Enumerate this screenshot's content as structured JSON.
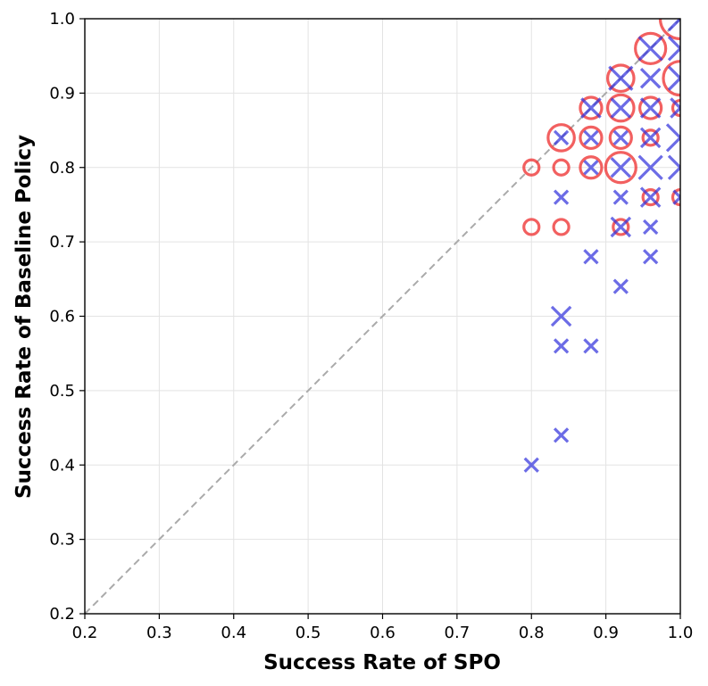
{
  "chart_data": {
    "type": "scatter",
    "title": "",
    "xlabel": "Success Rate of SPO",
    "ylabel": "Success Rate of Baseline Policy",
    "xlim": [
      0.2,
      1.0
    ],
    "ylim": [
      0.2,
      1.0
    ],
    "xticks": [
      "0.2",
      "0.3",
      "0.4",
      "0.5",
      "0.6",
      "0.7",
      "0.8",
      "0.9",
      "1.0"
    ],
    "yticks": [
      "0.2",
      "0.3",
      "0.4",
      "0.5",
      "0.6",
      "0.7",
      "0.8",
      "0.9",
      "1.0"
    ],
    "grid": true,
    "reference_line": {
      "from": [
        0.2,
        0.2
      ],
      "to": [
        1.0,
        1.0
      ],
      "style": "dashed",
      "color": "#aaaaaa"
    },
    "series": [
      {
        "name": "circles",
        "marker": "circle",
        "color": "#ee3333",
        "points": [
          {
            "x": 0.8,
            "y": 0.8,
            "size": 1
          },
          {
            "x": 0.8,
            "y": 0.72,
            "size": 1
          },
          {
            "x": 0.84,
            "y": 0.8,
            "size": 1
          },
          {
            "x": 0.84,
            "y": 0.72,
            "size": 1
          },
          {
            "x": 0.84,
            "y": 0.84,
            "size": 3
          },
          {
            "x": 0.88,
            "y": 0.88,
            "size": 2
          },
          {
            "x": 0.88,
            "y": 0.84,
            "size": 2
          },
          {
            "x": 0.88,
            "y": 0.8,
            "size": 2
          },
          {
            "x": 0.92,
            "y": 0.92,
            "size": 3
          },
          {
            "x": 0.92,
            "y": 0.88,
            "size": 3
          },
          {
            "x": 0.92,
            "y": 0.84,
            "size": 2
          },
          {
            "x": 0.92,
            "y": 0.8,
            "size": 4
          },
          {
            "x": 0.92,
            "y": 0.72,
            "size": 1
          },
          {
            "x": 0.96,
            "y": 0.96,
            "size": 4
          },
          {
            "x": 0.96,
            "y": 0.88,
            "size": 2
          },
          {
            "x": 0.96,
            "y": 0.84,
            "size": 1
          },
          {
            "x": 0.96,
            "y": 0.76,
            "size": 1
          },
          {
            "x": 1.0,
            "y": 1.0,
            "size": 7
          },
          {
            "x": 1.0,
            "y": 0.92,
            "size": 5
          },
          {
            "x": 1.0,
            "y": 0.88,
            "size": 1
          },
          {
            "x": 1.0,
            "y": 0.76,
            "size": 1
          }
        ]
      },
      {
        "name": "crosses",
        "marker": "x",
        "color": "#3333dd",
        "points": [
          {
            "x": 0.8,
            "y": 0.4,
            "size": 1
          },
          {
            "x": 0.84,
            "y": 0.44,
            "size": 1
          },
          {
            "x": 0.84,
            "y": 0.56,
            "size": 1
          },
          {
            "x": 0.84,
            "y": 0.6,
            "size": 2
          },
          {
            "x": 0.84,
            "y": 0.76,
            "size": 1
          },
          {
            "x": 0.84,
            "y": 0.84,
            "size": 1
          },
          {
            "x": 0.88,
            "y": 0.56,
            "size": 1
          },
          {
            "x": 0.88,
            "y": 0.68,
            "size": 1
          },
          {
            "x": 0.88,
            "y": 0.8,
            "size": 1
          },
          {
            "x": 0.88,
            "y": 0.84,
            "size": 1
          },
          {
            "x": 0.88,
            "y": 0.88,
            "size": 2
          },
          {
            "x": 0.92,
            "y": 0.64,
            "size": 1
          },
          {
            "x": 0.92,
            "y": 0.72,
            "size": 2
          },
          {
            "x": 0.92,
            "y": 0.76,
            "size": 1
          },
          {
            "x": 0.92,
            "y": 0.8,
            "size": 2
          },
          {
            "x": 0.92,
            "y": 0.84,
            "size": 1
          },
          {
            "x": 0.92,
            "y": 0.88,
            "size": 2
          },
          {
            "x": 0.92,
            "y": 0.92,
            "size": 3
          },
          {
            "x": 0.96,
            "y": 0.68,
            "size": 1
          },
          {
            "x": 0.96,
            "y": 0.72,
            "size": 1
          },
          {
            "x": 0.96,
            "y": 0.76,
            "size": 2
          },
          {
            "x": 0.96,
            "y": 0.8,
            "size": 3
          },
          {
            "x": 0.96,
            "y": 0.84,
            "size": 2
          },
          {
            "x": 0.96,
            "y": 0.88,
            "size": 2
          },
          {
            "x": 0.96,
            "y": 0.92,
            "size": 2
          },
          {
            "x": 0.96,
            "y": 0.96,
            "size": 3
          },
          {
            "x": 1.0,
            "y": 0.76,
            "size": 1
          },
          {
            "x": 1.0,
            "y": 0.8,
            "size": 3
          },
          {
            "x": 1.0,
            "y": 0.84,
            "size": 4
          },
          {
            "x": 1.0,
            "y": 0.88,
            "size": 2
          },
          {
            "x": 1.0,
            "y": 0.92,
            "size": 3
          },
          {
            "x": 1.0,
            "y": 0.96,
            "size": 3
          },
          {
            "x": 1.0,
            "y": 1.0,
            "size": 3
          }
        ]
      }
    ]
  }
}
